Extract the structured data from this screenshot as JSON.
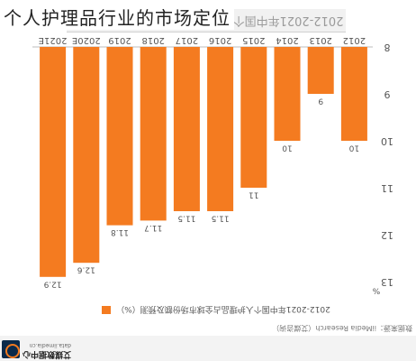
{
  "page": {
    "title": "个人护理品行业的市场定位",
    "ghost_title": "2012-2021年中国个人护理品占全球市场份额及预测",
    "source": "数据来源：iiMedia Research（艾媒咨询）",
    "legend_label": "2012-2021年中国个人护理品占全球市场份额及预测（%）",
    "logo_text": "艾媒数据中心",
    "logo_sub": "data.iimedia.cn"
  },
  "colors": {
    "bar": "#f47b20",
    "axis_text": "#555555",
    "grid": "#e6e6e6"
  },
  "chart_data": {
    "type": "bar",
    "orientation": "rotated-180",
    "categories": [
      "2012",
      "2013",
      "2014",
      "2015",
      "2016",
      "2017",
      "2018",
      "2019",
      "2020E",
      "2021E"
    ],
    "values": [
      10,
      9,
      10,
      11,
      11.5,
      11.5,
      11.7,
      11.8,
      12.6,
      12.9
    ],
    "data_labels": [
      "10",
      "9",
      "10",
      "11",
      "11.5",
      "11.5",
      "11.7",
      "11.8",
      "12.6",
      "12.9"
    ],
    "y_ticks": [
      "8",
      "9",
      "10",
      "11",
      "12",
      "13"
    ],
    "y_unit": "%",
    "ylim": [
      8,
      13
    ],
    "title": "2012-2021年中国个人护理品占全球市场份额及预测",
    "series": [
      {
        "name": "2012-2021年中国个人护理品占全球市场份额及预测（%）",
        "values": [
          10,
          9,
          10,
          11,
          11.5,
          11.5,
          11.7,
          11.8,
          12.6,
          12.9
        ]
      }
    ],
    "grid": false,
    "legend_position": "bottom"
  }
}
